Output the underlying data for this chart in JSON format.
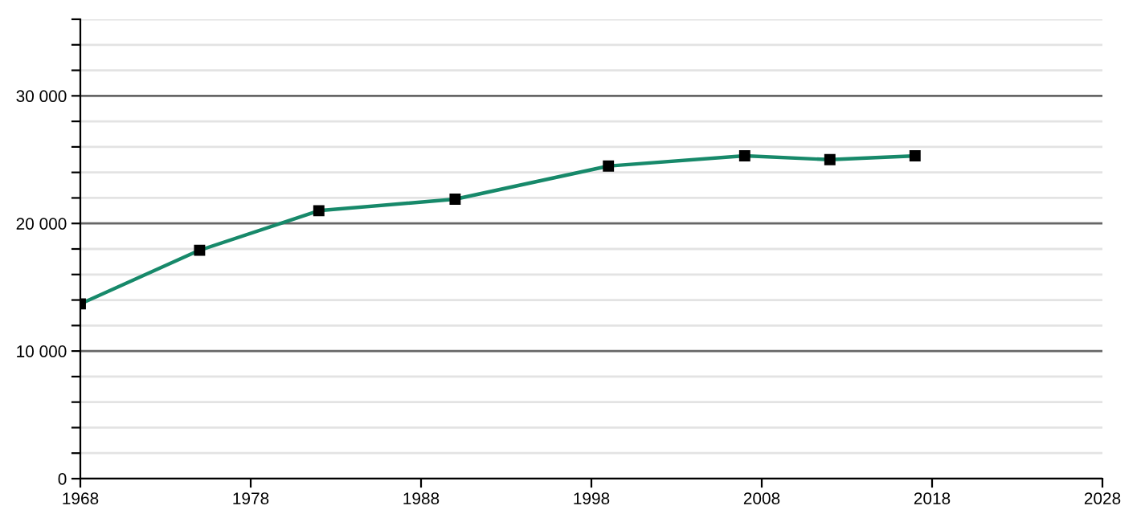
{
  "chart_data": {
    "type": "line",
    "x": [
      1968,
      1975,
      1982,
      1990,
      1999,
      2007,
      2012,
      2017
    ],
    "series": [
      {
        "color": "#17896a",
        "values": [
          13700,
          17900,
          21000,
          21900,
          24500,
          25300,
          25000,
          25300
        ]
      }
    ],
    "xlim": [
      1968,
      2028
    ],
    "xticks": [
      1968,
      1978,
      1988,
      1998,
      2008,
      2018,
      2028
    ],
    "ylim": [
      0,
      36000
    ],
    "yticks": [
      {
        "value": 0,
        "label": "0"
      },
      {
        "value": 2000,
        "label": null
      },
      {
        "value": 4000,
        "label": null
      },
      {
        "value": 6000,
        "label": null
      },
      {
        "value": 8000,
        "label": null
      },
      {
        "value": 10000,
        "label": "10 000"
      },
      {
        "value": 12000,
        "label": null
      },
      {
        "value": 14000,
        "label": null
      },
      {
        "value": 16000,
        "label": null
      },
      {
        "value": 18000,
        "label": null
      },
      {
        "value": 20000,
        "label": "20 000"
      },
      {
        "value": 22000,
        "label": null
      },
      {
        "value": 24000,
        "label": null
      },
      {
        "value": 26000,
        "label": null
      },
      {
        "value": 28000,
        "label": null
      },
      {
        "value": 30000,
        "label": "30 000"
      },
      {
        "value": 32000,
        "label": null
      },
      {
        "value": 34000,
        "label": null
      },
      {
        "value": 36000,
        "label": null
      }
    ],
    "grid": "y",
    "marker": "square",
    "line_style": "solid"
  }
}
